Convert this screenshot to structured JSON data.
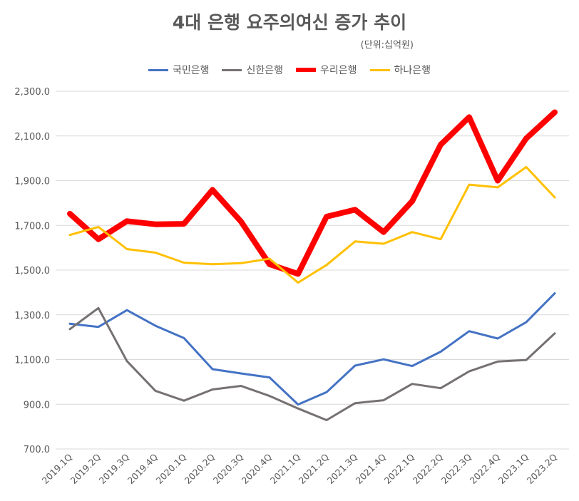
{
  "chart_data": {
    "type": "line",
    "title": "4대 은행 요주의여신 증가 추이",
    "subtitle": "(단위:십억원)",
    "categories": [
      "2019.1Q",
      "2019.2Q",
      "2019.3Q",
      "2019.4Q",
      "2020.1Q",
      "2020.2Q",
      "2020.3Q",
      "2020.4Q",
      "2021.1Q",
      "2021.2Q",
      "2021.3Q",
      "2021.4Q",
      "2022.1Q",
      "2022.2Q",
      "2022.3Q",
      "2022.4Q",
      "2023.1Q",
      "2023.2Q"
    ],
    "ylim": [
      700,
      2300
    ],
    "yticks": [
      "700.0",
      "900.0",
      "1,100.0",
      "1,300.0",
      "1,500.0",
      "1,700.0",
      "1,900.0",
      "2,100.0",
      "2,300.0"
    ],
    "ytick_values": [
      700,
      900,
      1100,
      1300,
      1500,
      1700,
      1900,
      2100,
      2300
    ],
    "grid": true,
    "legend_position": "top",
    "series": [
      {
        "name": "국민은행",
        "color": "#4472C4",
        "width": 3,
        "values": [
          1260,
          1246,
          1321,
          1251,
          1196,
          1057,
          1038,
          1020,
          899,
          954,
          1073,
          1101,
          1071,
          1135,
          1227,
          1194,
          1267,
          1396
        ]
      },
      {
        "name": "신한은행",
        "color": "#767171",
        "width": 3,
        "values": [
          1236,
          1330,
          1093,
          960,
          916,
          966,
          982,
          937,
          881,
          829,
          905,
          918,
          991,
          972,
          1047,
          1091,
          1098,
          1217
        ]
      },
      {
        "name": "우리은행",
        "color": "#FF0000",
        "width": 8,
        "values": [
          1752,
          1638,
          1719,
          1705,
          1707,
          1859,
          1717,
          1526,
          1483,
          1739,
          1770,
          1670,
          1808,
          2061,
          2184,
          1900,
          2089,
          2206
        ]
      },
      {
        "name": "하나은행",
        "color": "#FFC000",
        "width": 3,
        "values": [
          1657,
          1693,
          1594,
          1578,
          1533,
          1526,
          1531,
          1551,
          1444,
          1523,
          1628,
          1618,
          1670,
          1638,
          1882,
          1870,
          1961,
          1825
        ]
      }
    ]
  }
}
